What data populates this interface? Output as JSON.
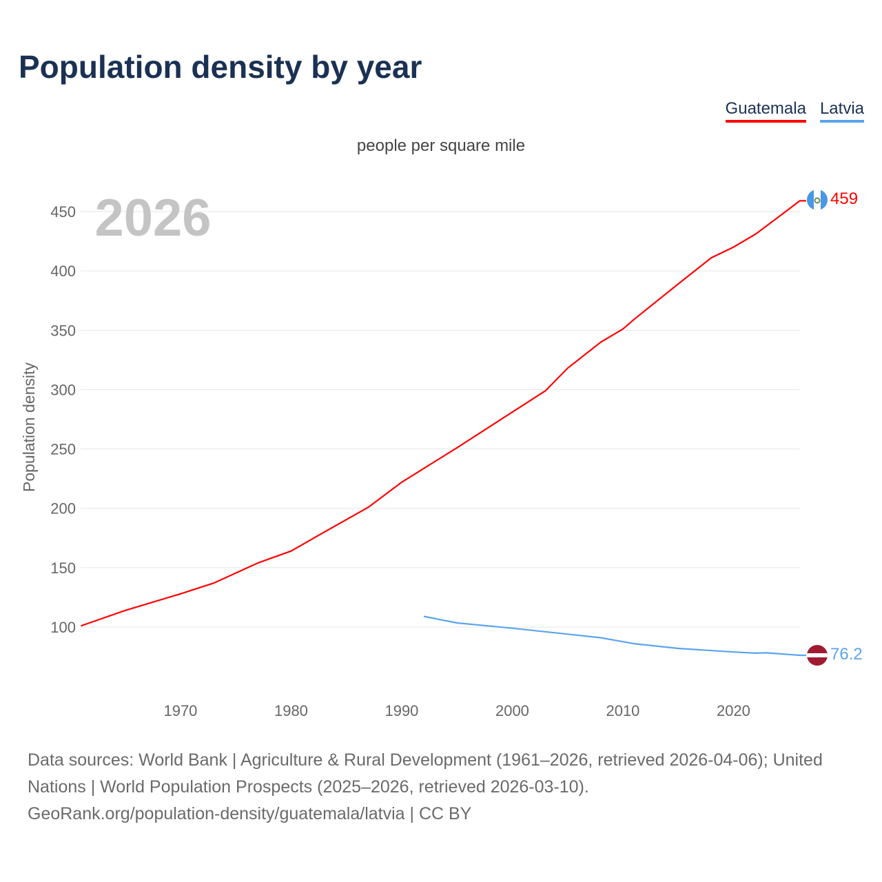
{
  "title": "Population density by year",
  "subtitle": "people per square mile",
  "year_watermark": "2026",
  "footer": {
    "sources": "Data sources: World Bank | Agriculture & Rural Development (1961–2026, retrieved 2026-04-06); United Nations | World Population Prospects (2025–2026, retrieved 2026-03-10).",
    "credit": "GeoRank.org/population-density/guatemala/latvia | CC BY"
  },
  "chart_data": {
    "type": "line",
    "title": "Population density by year",
    "subtitle": "people per square mile",
    "xlabel": "",
    "ylabel": "Population density",
    "xlim": [
      1961,
      2026
    ],
    "ylim": [
      50,
      470
    ],
    "xticks": [
      1970,
      1980,
      1990,
      2000,
      2010,
      2020
    ],
    "yticks": [
      100,
      150,
      200,
      250,
      300,
      350,
      400,
      450
    ],
    "grid": true,
    "legend_position": "top-right",
    "series": [
      {
        "name": "Guatemala",
        "color": "#ff0000",
        "end_label": "459",
        "flag": "guatemala-flag",
        "x": [
          1961,
          1965,
          1970,
          1973,
          1977,
          1980,
          1983,
          1987,
          1990,
          1995,
          2000,
          2003,
          2005,
          2008,
          2010,
          2011,
          2015,
          2018,
          2020,
          2022,
          2024,
          2026
        ],
        "y": [
          101,
          114,
          128,
          137,
          154,
          164,
          180,
          201,
          222,
          251,
          281,
          299,
          318,
          340,
          351,
          359,
          389,
          411,
          420,
          431,
          445,
          459
        ]
      },
      {
        "name": "Latvia",
        "color": "#5ba4ec",
        "end_label": "76.2",
        "flag": "latvia-flag",
        "x": [
          1992,
          1995,
          2000,
          2005,
          2008,
          2011,
          2015,
          2020,
          2022,
          2023,
          2026
        ],
        "y": [
          109,
          103.5,
          99,
          94,
          91,
          86,
          82,
          79,
          78,
          78.3,
          76.2
        ]
      }
    ]
  }
}
